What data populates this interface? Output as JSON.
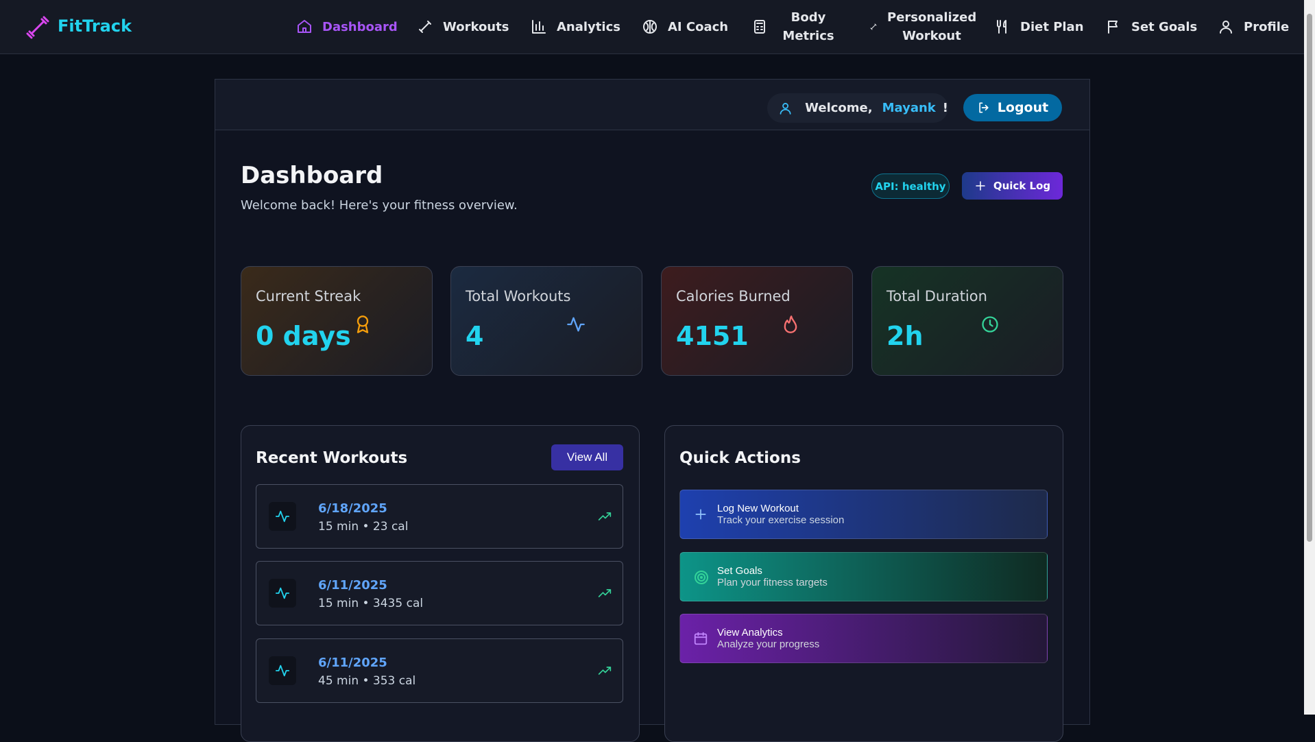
{
  "nav": {
    "brand": "FitTrack",
    "items": [
      "Dashboard",
      "Workouts",
      "Analytics",
      "AI Coach",
      "Body Metrics",
      "Personalized Workout",
      "Diet Plan",
      "Set Goals",
      "Profile"
    ]
  },
  "header": {
    "welcome": "Welcome,",
    "user": "Mayank",
    "exclaim": "!",
    "logout": "Logout"
  },
  "dashboard": {
    "title": "Dashboard",
    "subtitle": "Welcome back! Here's your fitness overview.",
    "api_status": "API: healthy",
    "quick_log": "Quick Log"
  },
  "stats": [
    {
      "label": "Current Streak",
      "value": "0 days"
    },
    {
      "label": "Total Workouts",
      "value": "4"
    },
    {
      "label": "Calories Burned",
      "value": "4151"
    },
    {
      "label": "Total Duration",
      "value": "2h"
    }
  ],
  "recent": {
    "title": "Recent Workouts",
    "view_all": "View All",
    "items": [
      {
        "date": "6/18/2025",
        "detail": "15 min • 23 cal"
      },
      {
        "date": "6/11/2025",
        "detail": "15 min • 3435 cal"
      },
      {
        "date": "6/11/2025",
        "detail": "45 min • 353 cal"
      }
    ]
  },
  "quick_actions": {
    "title": "Quick Actions",
    "items": [
      {
        "title": "Log New Workout",
        "subtitle": "Track your exercise session"
      },
      {
        "title": "Set Goals",
        "subtitle": "Plan your fitness targets"
      },
      {
        "title": "View Analytics",
        "subtitle": "Analyze your progress"
      }
    ]
  }
}
